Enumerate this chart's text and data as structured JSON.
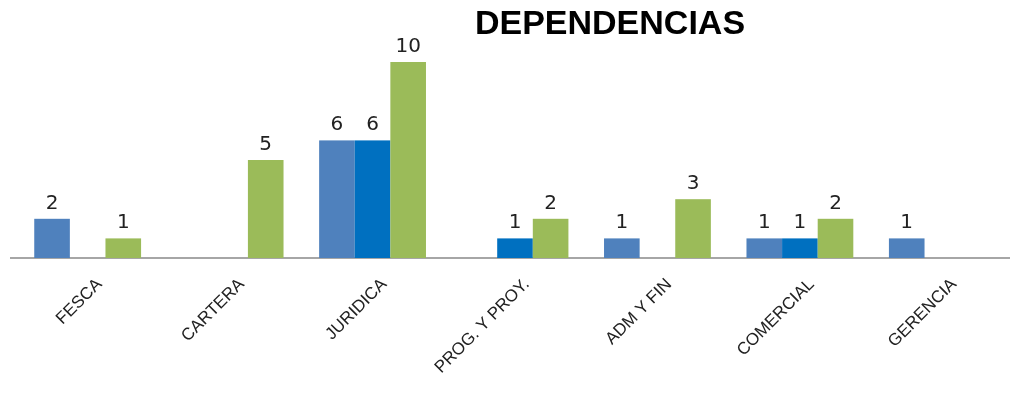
{
  "chart_data": {
    "type": "bar",
    "title": "DEPENDENCIAS",
    "categories": [
      "FESCA",
      "CARTERA",
      "JURIDICA",
      "PROG. Y PROY.",
      "ADM Y FIN",
      "COMERCIAL",
      "GERENCIA"
    ],
    "series": [
      {
        "color": "#4f81bd",
        "values": [
          2,
          null,
          6,
          null,
          1,
          1,
          1
        ]
      },
      {
        "color": "#0070c0",
        "values": [
          null,
          null,
          6,
          1,
          null,
          1,
          null
        ]
      },
      {
        "color": "#9bbb59",
        "values": [
          1,
          5,
          10,
          2,
          3,
          2,
          null
        ]
      }
    ],
    "data_labels": true
  }
}
